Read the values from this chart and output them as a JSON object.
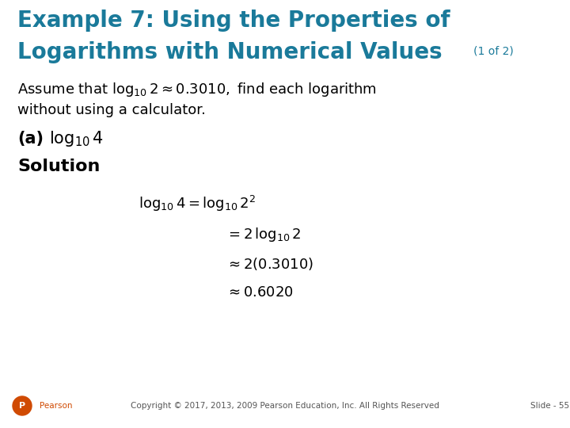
{
  "background_color": "#ffffff",
  "title_line1": "Example 7: Using the Properties of",
  "title_line2": "Logarithms with Numerical Values",
  "title_suffix": "(1 of 2)",
  "title_color": "#1a7a9a",
  "title_fontsize": 20,
  "title_suffix_fontsize": 10,
  "body_color": "#000000",
  "body_fontsize": 13,
  "assume_line2": "without using a calculator.",
  "part_a_label": "(a)",
  "part_a_fontsize": 15,
  "solution_label": "Solution",
  "solution_fontsize": 16,
  "eq_fontsize": 13,
  "footer_text": "Copyright © 2017, 2013, 2009 Pearson Education, Inc. All Rights Reserved",
  "footer_slide": "Slide - 55",
  "footer_fontsize": 7.5,
  "pearson_color": "#d04a02"
}
